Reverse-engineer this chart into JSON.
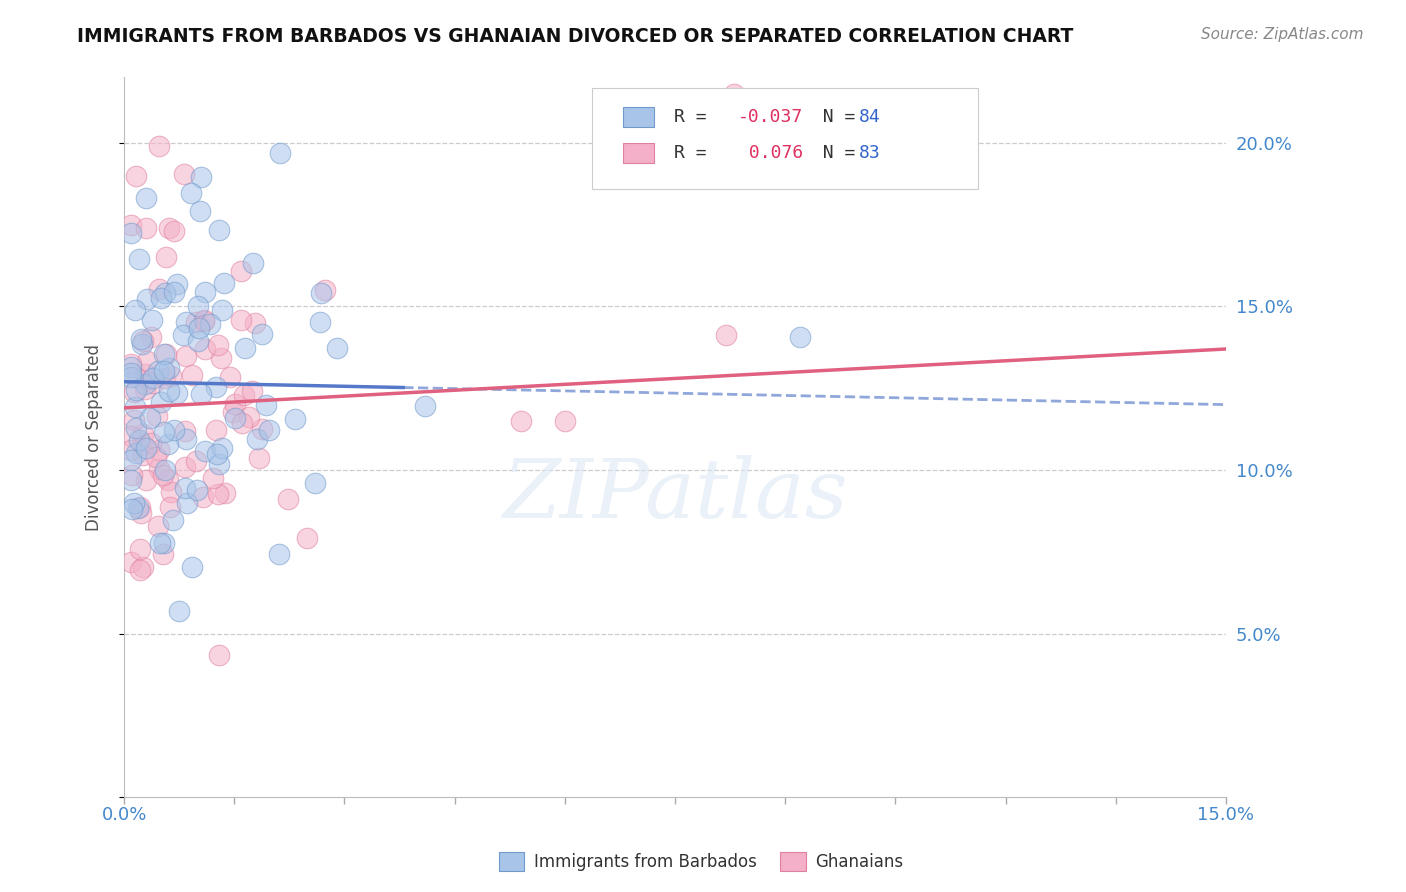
{
  "title": "IMMIGRANTS FROM BARBADOS VS GHANAIAN DIVORCED OR SEPARATED CORRELATION CHART",
  "source": "Source: ZipAtlas.com",
  "ylabel": "Divorced or Separated",
  "xlim": [
    0.0,
    0.15
  ],
  "ylim": [
    0.0,
    0.22
  ],
  "ytick_positions": [
    0.0,
    0.05,
    0.1,
    0.15,
    0.2
  ],
  "ytick_labels": [
    "",
    "5.0%",
    "10.0%",
    "15.0%",
    "20.0%"
  ],
  "xtick_positions": [
    0.0,
    0.015,
    0.03,
    0.045,
    0.06,
    0.075,
    0.09,
    0.105,
    0.12,
    0.135,
    0.15
  ],
  "blue_R": -0.037,
  "blue_N": 84,
  "pink_R": 0.076,
  "pink_N": 83,
  "blue_color": "#a8c4e8",
  "pink_color": "#f4b0c8",
  "blue_edge_color": "#7099cc",
  "pink_edge_color": "#e080a0",
  "blue_line_color": "#5578c8",
  "pink_line_color": "#e06080",
  "background_color": "#ffffff",
  "grid_color": "#cccccc",
  "title_color": "#111111",
  "axis_label_color": "#4488cc",
  "watermark": "ZIPatlas",
  "seed": 12345
}
